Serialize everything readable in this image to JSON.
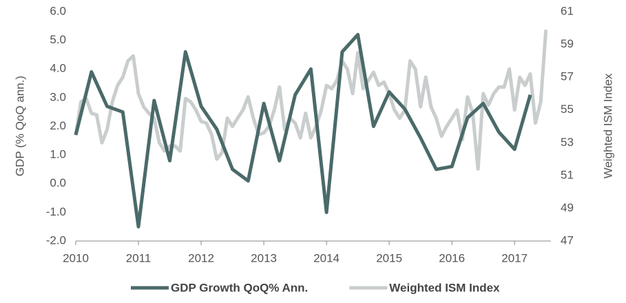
{
  "chart_data": {
    "type": "line",
    "ylabel": "GDP (% QoQ ann.)",
    "y2label": "Weighted ISM Index",
    "xlim": [
      2010,
      2017.58
    ],
    "xticks": [
      2010,
      2011,
      2012,
      2013,
      2014,
      2015,
      2016,
      2017
    ],
    "ylim": [
      -2,
      6
    ],
    "yticks": [
      {
        "value": -2,
        "label": "-2.0"
      },
      {
        "value": -1,
        "label": "-1.0"
      },
      {
        "value": 0,
        "label": "0.0"
      },
      {
        "value": 1,
        "label": "1.0"
      },
      {
        "value": 2,
        "label": "2.0"
      },
      {
        "value": 3,
        "label": "3.0"
      },
      {
        "value": 4,
        "label": "4.0"
      },
      {
        "value": 5,
        "label": "5.0"
      },
      {
        "value": 6,
        "label": "6.0"
      }
    ],
    "y2lim": [
      47,
      61
    ],
    "y2ticks": [
      47,
      49,
      51,
      53,
      55,
      57,
      59,
      61
    ],
    "legend": "bottom",
    "series": [
      {
        "name": "GDP Growth QoQ% Ann.",
        "color": "#4b6a6a",
        "width": 5,
        "x": [
          2010,
          2010.25,
          2010.5,
          2010.75,
          2011,
          2011.25,
          2011.5,
          2011.75,
          2012,
          2012.25,
          2012.5,
          2012.75,
          2013,
          2013.25,
          2013.5,
          2013.75,
          2014,
          2014.25,
          2014.5,
          2014.75,
          2015,
          2015.25,
          2015.5,
          2015.75,
          2016,
          2016.25,
          2016.5,
          2016.75,
          2017,
          2017.25
        ],
        "values": [
          1.7,
          3.9,
          2.7,
          2.5,
          -1.5,
          2.9,
          0.8,
          4.6,
          2.7,
          1.9,
          0.5,
          0.1,
          2.8,
          0.8,
          3.1,
          4.0,
          -1.0,
          4.6,
          5.2,
          2.0,
          3.2,
          2.6,
          1.6,
          0.5,
          0.6,
          2.3,
          2.8,
          1.8,
          1.2,
          3.1
        ]
      },
      {
        "name": "Weighted ISM Index",
        "color": "#c9cdcd",
        "width": 5,
        "axis": "y2",
        "x": [
          2010,
          2010.083,
          2010.167,
          2010.25,
          2010.333,
          2010.417,
          2010.5,
          2010.583,
          2010.667,
          2010.75,
          2010.833,
          2010.917,
          2011,
          2011.083,
          2011.167,
          2011.25,
          2011.333,
          2011.417,
          2011.5,
          2011.583,
          2011.667,
          2011.75,
          2011.833,
          2011.917,
          2012,
          2012.083,
          2012.167,
          2012.25,
          2012.333,
          2012.417,
          2012.5,
          2012.583,
          2012.667,
          2012.75,
          2012.833,
          2012.917,
          2013,
          2013.083,
          2013.167,
          2013.25,
          2013.333,
          2013.417,
          2013.5,
          2013.583,
          2013.667,
          2013.75,
          2013.833,
          2013.917,
          2014,
          2014.083,
          2014.167,
          2014.25,
          2014.333,
          2014.417,
          2014.5,
          2014.583,
          2014.667,
          2014.75,
          2014.833,
          2014.917,
          2015,
          2015.083,
          2015.167,
          2015.25,
          2015.333,
          2015.417,
          2015.5,
          2015.583,
          2015.667,
          2015.75,
          2015.833,
          2015.917,
          2016,
          2016.083,
          2016.167,
          2016.25,
          2016.333,
          2016.417,
          2016.5,
          2016.583,
          2016.667,
          2016.75,
          2016.833,
          2016.917,
          2017,
          2017.083,
          2017.167,
          2017.25,
          2017.333,
          2017.417,
          2017.5
        ],
        "values": [
          53.5,
          55.5,
          55.7,
          54.8,
          54.7,
          53.0,
          53.8,
          55.5,
          56.5,
          57.0,
          58.0,
          58.3,
          56.0,
          55.2,
          54.8,
          54.5,
          53.0,
          52.5,
          52.8,
          52.8,
          52.5,
          55.7,
          55.5,
          55.0,
          54.3,
          54.2,
          53.5,
          52.0,
          52.4,
          54.5,
          54.0,
          54.5,
          55.0,
          55.8,
          54.5,
          53.5,
          53.6,
          54.0,
          55.0,
          56.4,
          53.8,
          54.5,
          54.2,
          53.3,
          54.8,
          53.3,
          54.0,
          55.0,
          56.5,
          56.3,
          56.8,
          58.0,
          57.5,
          56.0,
          58.5,
          56.3,
          56.8,
          57.3,
          56.5,
          56.7,
          56.0,
          55.0,
          54.5,
          55.0,
          58.0,
          57.5,
          55.2,
          57.0,
          55.2,
          54.5,
          53.4,
          54.0,
          54.5,
          55.0,
          53.2,
          55.8,
          54.8,
          51.4,
          56.0,
          55.3,
          56.0,
          56.4,
          56.4,
          57.5,
          55.0,
          57.0,
          56.5,
          57.2,
          54.2,
          55.5,
          59.9
        ]
      }
    ]
  }
}
